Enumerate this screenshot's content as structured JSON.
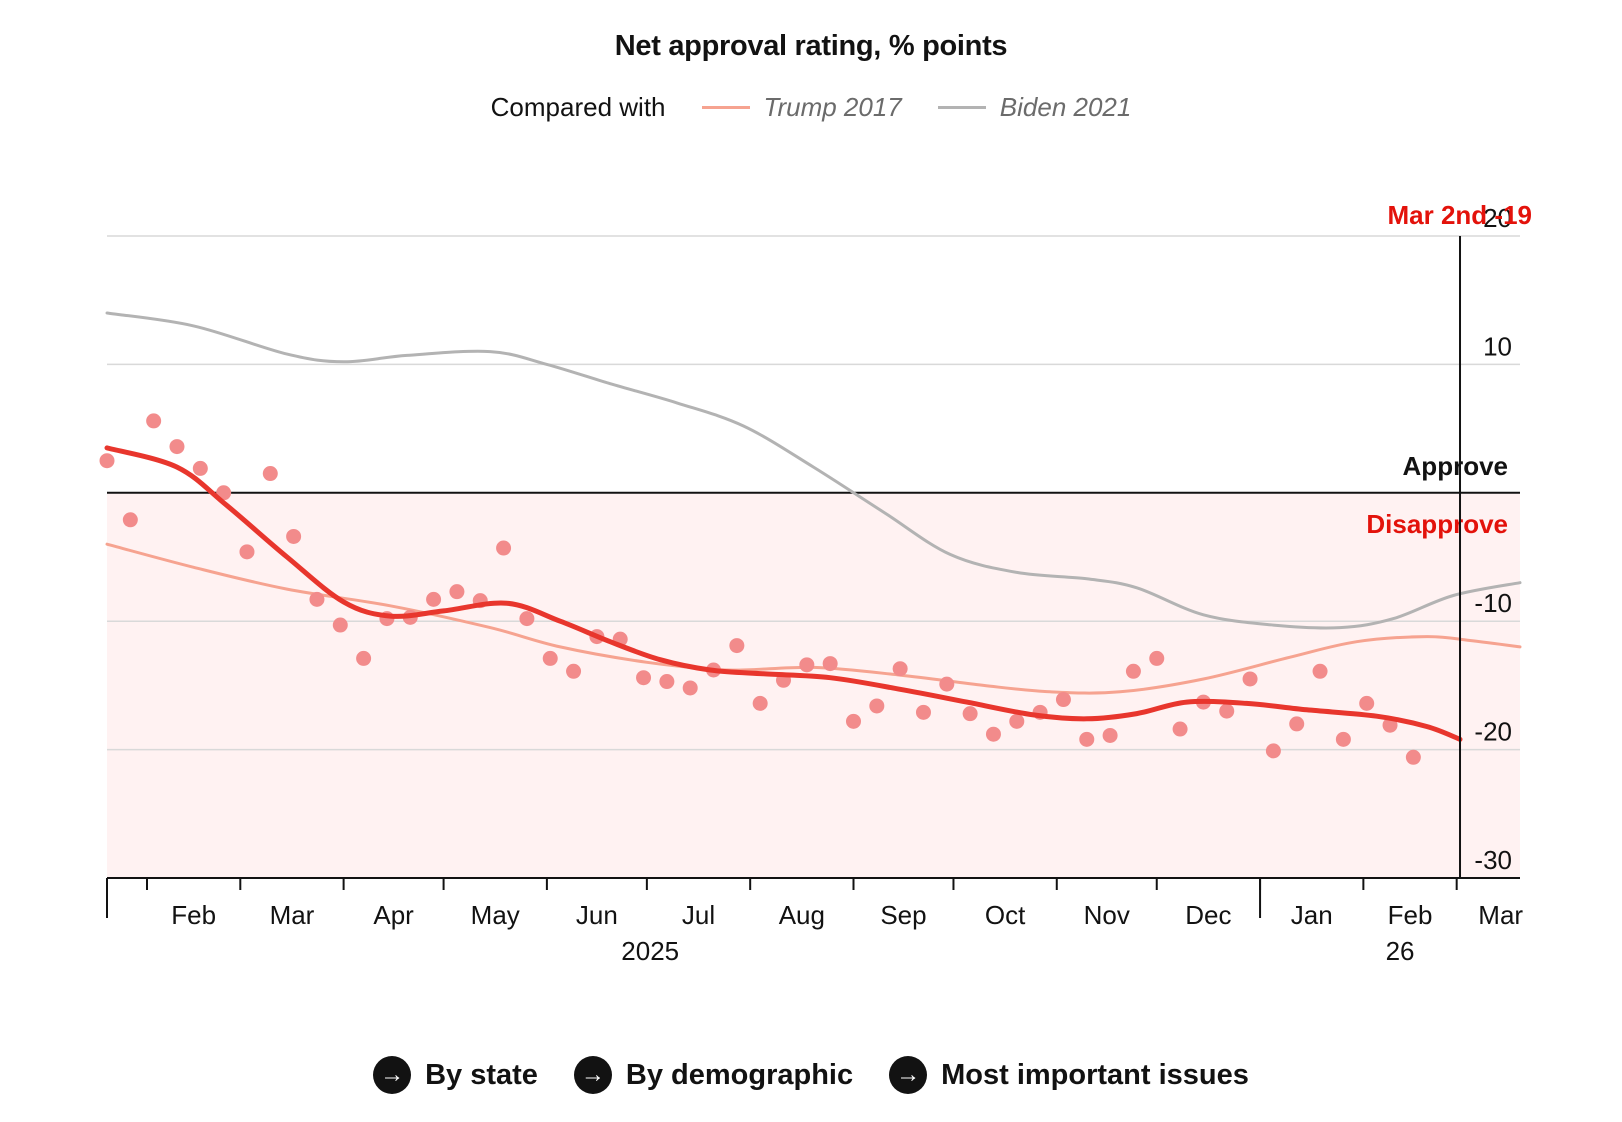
{
  "chart_data": {
    "type": "line",
    "title": "Net approval rating, % points",
    "legend": {
      "intro": "Compared with",
      "placement": "top-center",
      "items": [
        {
          "name": "Trump 2017",
          "color": "#f6a390"
        },
        {
          "name": "Biden 2021",
          "color": "#b3b3b3"
        }
      ]
    },
    "ylim": [
      -30,
      20
    ],
    "yticks": [
      20,
      10,
      -10,
      -20,
      -30
    ],
    "zone_labels": {
      "approve": "Approve",
      "disapprove": "Disapprove"
    },
    "xlim": [
      "2025-01-20",
      "2026-03-20"
    ],
    "xticks": [
      {
        "date": "2025-02-01",
        "label": "Feb"
      },
      {
        "date": "2025-03-01",
        "label": "Mar"
      },
      {
        "date": "2025-04-01",
        "label": "Apr"
      },
      {
        "date": "2025-05-01",
        "label": "May"
      },
      {
        "date": "2025-06-01",
        "label": "Jun"
      },
      {
        "date": "2025-07-01",
        "label": "Jul"
      },
      {
        "date": "2025-08-01",
        "label": "Aug"
      },
      {
        "date": "2025-09-01",
        "label": "Sep"
      },
      {
        "date": "2025-10-01",
        "label": "Oct"
      },
      {
        "date": "2025-11-01",
        "label": "Nov"
      },
      {
        "date": "2025-12-01",
        "label": "Dec"
      },
      {
        "date": "2026-01-01",
        "label": "Jan"
      },
      {
        "date": "2026-02-01",
        "label": "Feb"
      },
      {
        "date": "2026-03-01",
        "label": "Mar"
      }
    ],
    "year_labels": [
      {
        "date": "2025-07-02",
        "label": "2025"
      },
      {
        "date": "2026-02-12",
        "label": "26"
      }
    ],
    "current": {
      "date": "2026-03-02",
      "label": "Mar 2nd -19",
      "value": -19
    },
    "series": [
      {
        "name": "",
        "color": "#e8362d",
        "points": [
          [
            "2025-01-20",
            3.5
          ],
          [
            "2025-02-10",
            2
          ],
          [
            "2025-02-25",
            -1
          ],
          [
            "2025-03-15",
            -5
          ],
          [
            "2025-04-01",
            -8.5
          ],
          [
            "2025-04-15",
            -9.6
          ],
          [
            "2025-05-01",
            -9.2
          ],
          [
            "2025-05-20",
            -8.6
          ],
          [
            "2025-06-05",
            -10
          ],
          [
            "2025-06-20",
            -11.6
          ],
          [
            "2025-07-05",
            -13
          ],
          [
            "2025-07-20",
            -13.8
          ],
          [
            "2025-08-05",
            -14.1
          ],
          [
            "2025-08-25",
            -14.4
          ],
          [
            "2025-09-15",
            -15.3
          ],
          [
            "2025-10-05",
            -16.3
          ],
          [
            "2025-10-25",
            -17.3
          ],
          [
            "2025-11-10",
            -17.6
          ],
          [
            "2025-11-25",
            -17.2
          ],
          [
            "2025-12-10",
            -16.3
          ],
          [
            "2025-12-28",
            -16.4
          ],
          [
            "2026-01-15",
            -16.9
          ],
          [
            "2026-02-05",
            -17.4
          ],
          [
            "2026-02-20",
            -18.2
          ],
          [
            "2026-03-02",
            -19.2
          ]
        ]
      },
      {
        "name": "Trump 2017",
        "color": "#f6a390",
        "points": [
          [
            "2025-01-20",
            -4
          ],
          [
            "2025-02-15",
            -5.8
          ],
          [
            "2025-03-15",
            -7.5
          ],
          [
            "2025-04-15",
            -8.8
          ],
          [
            "2025-05-15",
            -10.5
          ],
          [
            "2025-06-05",
            -12
          ],
          [
            "2025-07-01",
            -13.2
          ],
          [
            "2025-07-25",
            -13.8
          ],
          [
            "2025-08-20",
            -13.6
          ],
          [
            "2025-09-15",
            -14.2
          ],
          [
            "2025-10-10",
            -15
          ],
          [
            "2025-10-30",
            -15.5
          ],
          [
            "2025-11-20",
            -15.5
          ],
          [
            "2025-12-15",
            -14.5
          ],
          [
            "2026-01-10",
            -12.8
          ],
          [
            "2026-01-30",
            -11.6
          ],
          [
            "2026-02-20",
            -11.2
          ],
          [
            "2026-03-05",
            -11.5
          ],
          [
            "2026-03-20",
            -12
          ]
        ]
      },
      {
        "name": "Biden 2021",
        "color": "#b3b3b3",
        "points": [
          [
            "2025-01-20",
            14
          ],
          [
            "2025-02-15",
            13
          ],
          [
            "2025-03-15",
            10.8
          ],
          [
            "2025-04-01",
            10.2
          ],
          [
            "2025-04-20",
            10.7
          ],
          [
            "2025-05-15",
            11
          ],
          [
            "2025-06-01",
            10
          ],
          [
            "2025-06-20",
            8.5
          ],
          [
            "2025-07-10",
            7
          ],
          [
            "2025-07-30",
            5.2
          ],
          [
            "2025-08-20",
            2
          ],
          [
            "2025-09-10",
            -1.5
          ],
          [
            "2025-09-30",
            -4.8
          ],
          [
            "2025-10-20",
            -6.2
          ],
          [
            "2025-11-10",
            -6.7
          ],
          [
            "2025-11-25",
            -7.4
          ],
          [
            "2025-12-15",
            -9.5
          ],
          [
            "2026-01-05",
            -10.3
          ],
          [
            "2026-01-25",
            -10.5
          ],
          [
            "2026-02-10",
            -9.8
          ],
          [
            "2026-02-28",
            -8
          ],
          [
            "2026-03-20",
            -7
          ]
        ]
      }
    ],
    "polls": {
      "color": "#f28b8b",
      "points": [
        [
          "2025-01-20",
          2.5
        ],
        [
          "2025-01-27",
          -2.1
        ],
        [
          "2025-02-03",
          5.6
        ],
        [
          "2025-02-10",
          3.6
        ],
        [
          "2025-02-17",
          1.9
        ],
        [
          "2025-02-24",
          0
        ],
        [
          "2025-03-03",
          -4.6
        ],
        [
          "2025-03-10",
          1.5
        ],
        [
          "2025-03-17",
          -3.4
        ],
        [
          "2025-03-24",
          -8.3
        ],
        [
          "2025-03-31",
          -10.3
        ],
        [
          "2025-04-07",
          -12.9
        ],
        [
          "2025-04-14",
          -9.8
        ],
        [
          "2025-04-21",
          -9.7
        ],
        [
          "2025-04-28",
          -8.3
        ],
        [
          "2025-05-05",
          -7.7
        ],
        [
          "2025-05-12",
          -8.4
        ],
        [
          "2025-05-19",
          -4.3
        ],
        [
          "2025-05-26",
          -9.8
        ],
        [
          "2025-06-02",
          -12.9
        ],
        [
          "2025-06-09",
          -13.9
        ],
        [
          "2025-06-16",
          -11.2
        ],
        [
          "2025-06-23",
          -11.4
        ],
        [
          "2025-06-30",
          -14.4
        ],
        [
          "2025-07-07",
          -14.7
        ],
        [
          "2025-07-14",
          -15.2
        ],
        [
          "2025-07-21",
          -13.8
        ],
        [
          "2025-07-28",
          -11.9
        ],
        [
          "2025-08-04",
          -16.4
        ],
        [
          "2025-08-11",
          -14.6
        ],
        [
          "2025-08-18",
          -13.4
        ],
        [
          "2025-08-25",
          -13.3
        ],
        [
          "2025-09-01",
          -17.8
        ],
        [
          "2025-09-08",
          -16.6
        ],
        [
          "2025-09-15",
          -13.7
        ],
        [
          "2025-09-22",
          -17.1
        ],
        [
          "2025-09-29",
          -14.9
        ],
        [
          "2025-10-06",
          -17.2
        ],
        [
          "2025-10-13",
          -18.8
        ],
        [
          "2025-10-20",
          -17.8
        ],
        [
          "2025-10-27",
          -17.1
        ],
        [
          "2025-11-03",
          -16.1
        ],
        [
          "2025-11-10",
          -19.2
        ],
        [
          "2025-11-17",
          -18.9
        ],
        [
          "2025-11-24",
          -13.9
        ],
        [
          "2025-12-01",
          -12.9
        ],
        [
          "2025-12-08",
          -18.4
        ],
        [
          "2025-12-15",
          -16.3
        ],
        [
          "2025-12-22",
          -17.0
        ],
        [
          "2025-12-29",
          -14.5
        ],
        [
          "2026-01-05",
          -20.1
        ],
        [
          "2026-01-12",
          -18.0
        ],
        [
          "2026-01-19",
          -13.9
        ],
        [
          "2026-01-26",
          -19.2
        ],
        [
          "2026-02-02",
          -16.4
        ],
        [
          "2026-02-09",
          -18.1
        ],
        [
          "2026-02-16",
          -20.6
        ]
      ]
    }
  },
  "links": [
    {
      "label": "By state"
    },
    {
      "label": "By demographic"
    },
    {
      "label": "Most important issues"
    }
  ],
  "icons": {
    "link_arrow": "arrow-right-circle-icon",
    "arrow_glyph": "→"
  }
}
